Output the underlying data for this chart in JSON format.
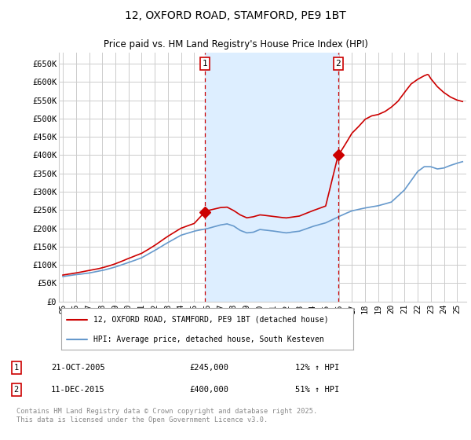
{
  "title": "12, OXFORD ROAD, STAMFORD, PE9 1BT",
  "subtitle": "Price paid vs. HM Land Registry's House Price Index (HPI)",
  "background_color": "#ffffff",
  "plot_bg_color": "#ffffff",
  "grid_color": "#cccccc",
  "shade_color": "#ddeeff",
  "line1_color": "#cc0000",
  "line2_color": "#6699cc",
  "annotation_line_color": "#cc0000",
  "legend_label1": "12, OXFORD ROAD, STAMFORD, PE9 1BT (detached house)",
  "legend_label2": "HPI: Average price, detached house, South Kesteven",
  "event1_x": 2005.83,
  "event1_price": 245000,
  "event2_x": 2015.95,
  "event2_price": 400000,
  "table_row1": [
    "1",
    "21-OCT-2005",
    "£245,000",
    "12% ↑ HPI"
  ],
  "table_row2": [
    "2",
    "11-DEC-2015",
    "£400,000",
    "51% ↑ HPI"
  ],
  "footer": "Contains HM Land Registry data © Crown copyright and database right 2025.\nThis data is licensed under the Open Government Licence v3.0.",
  "ylim": [
    0,
    680000
  ],
  "yticks": [
    0,
    50000,
    100000,
    150000,
    200000,
    250000,
    300000,
    350000,
    400000,
    450000,
    500000,
    550000,
    600000,
    650000
  ],
  "ytick_labels": [
    "£0",
    "£50K",
    "£100K",
    "£150K",
    "£200K",
    "£250K",
    "£300K",
    "£350K",
    "£400K",
    "£450K",
    "£500K",
    "£550K",
    "£600K",
    "£650K"
  ],
  "xlim_min": 1994.7,
  "xlim_max": 2025.7
}
